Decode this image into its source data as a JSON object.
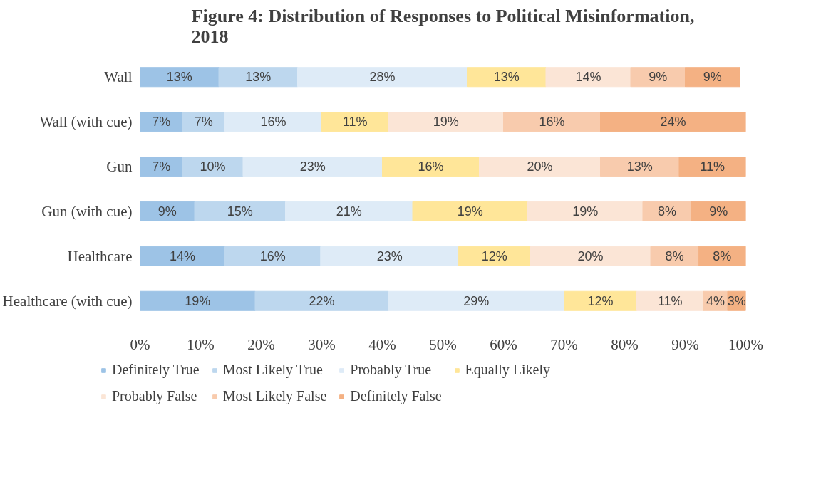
{
  "chart_data": {
    "type": "bar",
    "orientation": "horizontal",
    "stacked": true,
    "title": "Figure 4: Distribution of Responses to Political Misinformation,\n2018",
    "categories": [
      "Wall",
      "Wall (with cue)",
      "Gun",
      "Gun (with cue)",
      "Healthcare",
      "Healthcare (with cue)"
    ],
    "series": [
      {
        "name": "Definitely True",
        "color": "#9dc3e6",
        "values": [
          13,
          7,
          7,
          9,
          14,
          19
        ],
        "value_labels": [
          "13%",
          "7%",
          "7%",
          "9%",
          "14%",
          "19%"
        ]
      },
      {
        "name": "Most Likely True",
        "color": "#bdd7ee",
        "values": [
          13,
          7,
          10,
          15,
          15.8,
          22
        ],
        "value_labels": [
          "13%",
          "7%",
          "10%",
          "15%",
          "16%",
          "22%"
        ]
      },
      {
        "name": "Probably True",
        "color": "#deebf7",
        "values": [
          28,
          16,
          23,
          21,
          22.8,
          29
        ],
        "value_labels": [
          "28%",
          "16%",
          "23%",
          "21%",
          "23%",
          "29%"
        ]
      },
      {
        "name": "Equally Likely",
        "color": "#ffe699",
        "values": [
          13,
          11,
          16,
          19,
          11.8,
          12
        ],
        "value_labels": [
          "13%",
          "11%",
          "16%",
          "19%",
          "12%",
          "12%"
        ]
      },
      {
        "name": "Probably False",
        "color": "#fbe5d6",
        "values": [
          14,
          19,
          20,
          19,
          19.9,
          11
        ],
        "value_labels": [
          "14%",
          "19%",
          "20%",
          "19%",
          "20%",
          "11%"
        ]
      },
      {
        "name": "Most Likely False",
        "color": "#f8cbad",
        "values": [
          9,
          16,
          13,
          8,
          7.9,
          4
        ],
        "value_labels": [
          "9%",
          "16%",
          "13%",
          "8%",
          "8%",
          "4%"
        ]
      },
      {
        "name": "Definitely False",
        "color": "#f4b183",
        "values": [
          9,
          24,
          11,
          9,
          7.8,
          3
        ],
        "value_labels": [
          "9%",
          "24%",
          "11%",
          "9%",
          "8%",
          "3%"
        ]
      }
    ],
    "xlim": [
      0,
      100
    ],
    "xticks": [
      {
        "value": 0,
        "label": "0%"
      },
      {
        "value": 10,
        "label": "10%"
      },
      {
        "value": 20,
        "label": "20%"
      },
      {
        "value": 30,
        "label": "30%"
      },
      {
        "value": 40,
        "label": "40%"
      },
      {
        "value": 50,
        "label": "50%"
      },
      {
        "value": 60,
        "label": "60%"
      },
      {
        "value": 70,
        "label": "70%"
      },
      {
        "value": 80,
        "label": "80%"
      },
      {
        "value": 90,
        "label": "90%"
      },
      {
        "value": 100,
        "label": "100%"
      }
    ],
    "grid": false,
    "legend": "bottom"
  }
}
